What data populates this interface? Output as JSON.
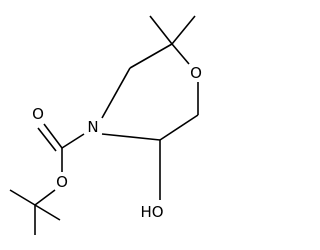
{
  "molecule": {
    "atoms": [
      {
        "label": "O"
      },
      {
        "label": "N"
      },
      {
        "label": "O"
      },
      {
        "label": "O"
      },
      {
        "label": "HO"
      }
    ]
  }
}
